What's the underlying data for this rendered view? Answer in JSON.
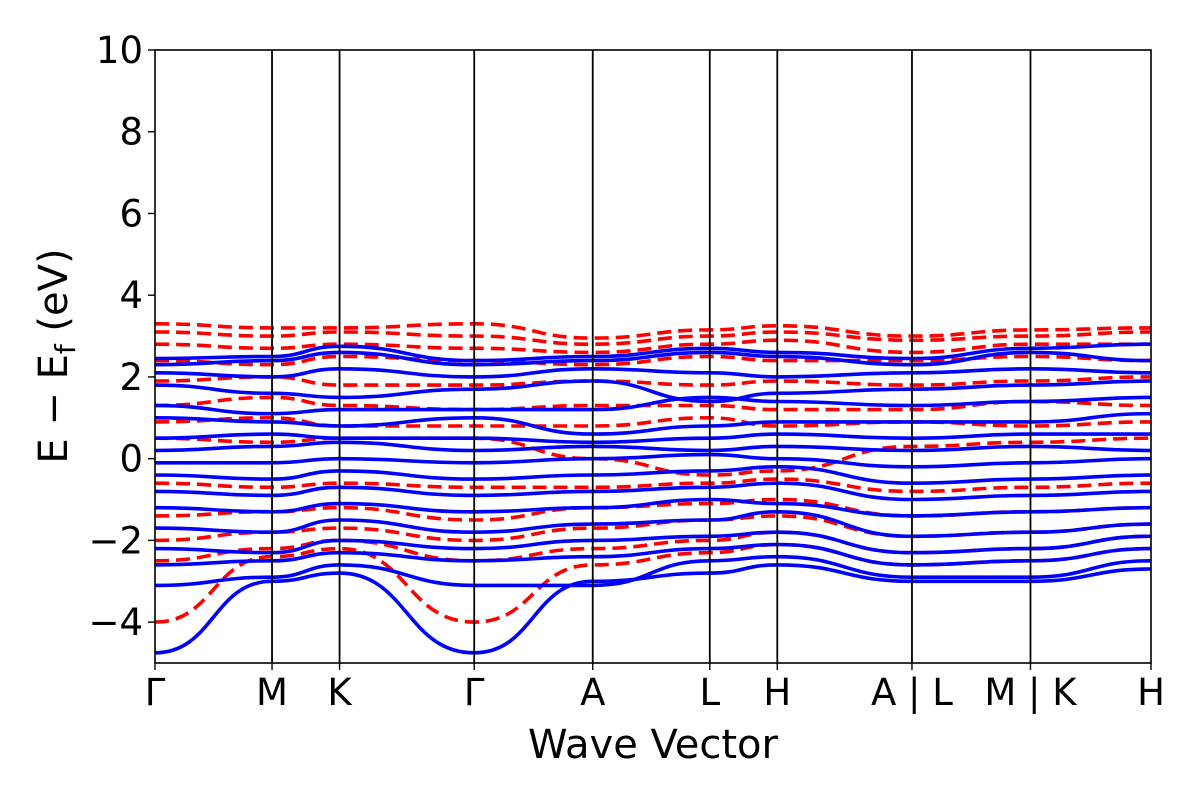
{
  "chart_data": {
    "type": "line",
    "title": "",
    "xlabel": "Wave Vector",
    "ylabel": "E − E_f (eV)",
    "ylabel_parts": {
      "main": "E − E",
      "sub": "f",
      "unit": " (eV)"
    },
    "xlim": [
      0,
      1
    ],
    "ylim": [
      -5,
      10
    ],
    "yticks": [
      -4,
      -2,
      0,
      2,
      4,
      6,
      8,
      10
    ],
    "ytick_labels": [
      "−4",
      "−2",
      "0",
      "2",
      "4",
      "6",
      "8",
      "10"
    ],
    "grid": false,
    "legend": "none",
    "kpoints": [
      {
        "label": "Γ",
        "x": 0.0
      },
      {
        "label": "M",
        "x": 0.1175
      },
      {
        "label": "K",
        "x": 0.1853
      },
      {
        "label": "Γ",
        "x": 0.3205
      },
      {
        "label": "A",
        "x": 0.4395
      },
      {
        "label": "L",
        "x": 0.557
      },
      {
        "label": "H",
        "x": 0.6248
      },
      {
        "label": "A | L",
        "x": 0.76
      },
      {
        "label": "M | K",
        "x": 0.879
      },
      {
        "label": "H",
        "x": 1.0
      }
    ],
    "colors": {
      "spin_up": "#0000ff",
      "spin_down": "#ff0000"
    },
    "series": [
      {
        "style": "solid",
        "color": "#0000ff",
        "bands": [
          {
            "x": [
              0,
              0.1175,
              0.1853,
              0.3205,
              0.4395,
              0.557,
              0.6248,
              0.76,
              0.879,
              1.0
            ],
            "y": [
              -4.75,
              -3.0,
              -2.8,
              -4.75,
              -3.0,
              -2.8,
              -2.6,
              -3.0,
              -3.0,
              -2.7
            ]
          },
          {
            "x": [
              0,
              0.1175,
              0.1853,
              0.3205,
              0.4395,
              0.557,
              0.6248,
              0.76,
              0.879,
              1.0
            ],
            "y": [
              -3.1,
              -2.9,
              -2.6,
              -3.1,
              -3.1,
              -2.5,
              -2.4,
              -2.9,
              -2.9,
              -2.5
            ]
          },
          {
            "x": [
              0,
              0.1175,
              0.1853,
              0.3205,
              0.4395,
              0.557,
              0.6248,
              0.76,
              0.879,
              1.0
            ],
            "y": [
              -2.6,
              -2.5,
              -2.3,
              -2.5,
              -2.4,
              -2.2,
              -2.1,
              -2.6,
              -2.5,
              -2.2
            ]
          },
          {
            "x": [
              0,
              0.1175,
              0.1853,
              0.3205,
              0.4395,
              0.557,
              0.6248,
              0.76,
              0.879,
              1.0
            ],
            "y": [
              -2.2,
              -2.3,
              -2.0,
              -2.2,
              -2.0,
              -1.9,
              -1.8,
              -2.3,
              -2.2,
              -1.9
            ]
          },
          {
            "x": [
              0,
              0.1175,
              0.1853,
              0.3205,
              0.4395,
              0.557,
              0.6248,
              0.76,
              0.879,
              1.0
            ],
            "y": [
              -1.7,
              -1.8,
              -1.5,
              -1.8,
              -1.6,
              -1.5,
              -1.3,
              -1.9,
              -1.8,
              -1.6
            ]
          },
          {
            "x": [
              0,
              0.1175,
              0.1853,
              0.3205,
              0.4395,
              0.557,
              0.6248,
              0.76,
              0.879,
              1.0
            ],
            "y": [
              -1.2,
              -1.3,
              -1.1,
              -1.3,
              -1.2,
              -1.0,
              -1.1,
              -1.4,
              -1.3,
              -1.2
            ]
          },
          {
            "x": [
              0,
              0.1175,
              0.1853,
              0.3205,
              0.4395,
              0.557,
              0.6248,
              0.76,
              0.879,
              1.0
            ],
            "y": [
              -0.8,
              -0.9,
              -0.7,
              -0.9,
              -0.8,
              -0.7,
              -0.6,
              -1.0,
              -0.9,
              -0.8
            ]
          },
          {
            "x": [
              0,
              0.1175,
              0.1853,
              0.3205,
              0.4395,
              0.557,
              0.6248,
              0.76,
              0.879,
              1.0
            ],
            "y": [
              -0.4,
              -0.5,
              -0.3,
              -0.5,
              -0.4,
              -0.3,
              -0.2,
              -0.6,
              -0.5,
              -0.4
            ]
          },
          {
            "x": [
              0,
              0.1175,
              0.1853,
              0.3205,
              0.4395,
              0.557,
              0.6248,
              0.76,
              0.879,
              1.0
            ],
            "y": [
              -0.1,
              -0.1,
              0.0,
              -0.1,
              0.0,
              0.1,
              0.0,
              -0.2,
              -0.1,
              0.0
            ]
          },
          {
            "x": [
              0,
              0.1175,
              0.1853,
              0.3205,
              0.4395,
              0.557,
              0.6248,
              0.76,
              0.879,
              1.0
            ],
            "y": [
              0.2,
              0.3,
              0.4,
              0.2,
              0.3,
              0.2,
              0.3,
              0.2,
              0.3,
              0.2
            ]
          },
          {
            "x": [
              0,
              0.1175,
              0.1853,
              0.3205,
              0.4395,
              0.557,
              0.6248,
              0.76,
              0.879,
              1.0
            ],
            "y": [
              0.5,
              0.6,
              0.5,
              0.5,
              0.4,
              0.5,
              0.6,
              0.5,
              0.6,
              0.6
            ]
          },
          {
            "x": [
              0,
              0.1175,
              0.1853,
              0.3205,
              0.4395,
              0.557,
              0.6248,
              0.76,
              0.879,
              1.0
            ],
            "y": [
              1.0,
              0.9,
              0.8,
              1.0,
              0.6,
              0.8,
              0.9,
              0.9,
              0.9,
              1.1
            ]
          },
          {
            "x": [
              0,
              0.1175,
              0.1853,
              0.3205,
              0.4395,
              0.557,
              0.6248,
              0.76,
              0.879,
              1.0
            ],
            "y": [
              1.3,
              1.1,
              1.2,
              1.2,
              1.2,
              1.5,
              1.4,
              1.3,
              1.4,
              1.5
            ]
          },
          {
            "x": [
              0,
              0.1175,
              0.1853,
              0.3205,
              0.4395,
              0.557,
              0.6248,
              0.76,
              0.879,
              1.0
            ],
            "y": [
              1.8,
              1.6,
              1.5,
              1.7,
              1.9,
              1.4,
              1.6,
              1.7,
              1.8,
              1.9
            ]
          },
          {
            "x": [
              0,
              0.1175,
              0.1853,
              0.3205,
              0.4395,
              0.557,
              0.6248,
              0.76,
              0.879,
              1.0
            ],
            "y": [
              2.1,
              2.0,
              2.2,
              2.0,
              2.2,
              2.1,
              2.0,
              2.1,
              2.2,
              2.1
            ]
          },
          {
            "x": [
              0,
              0.1175,
              0.1853,
              0.3205,
              0.4395,
              0.557,
              0.6248,
              0.76,
              0.879,
              1.0
            ],
            "y": [
              2.3,
              2.4,
              2.6,
              2.3,
              2.4,
              2.6,
              2.5,
              2.3,
              2.6,
              2.4
            ]
          },
          {
            "x": [
              0,
              0.1175,
              0.1853,
              0.3205,
              0.4395,
              0.557,
              0.6248,
              0.76,
              0.879,
              1.0
            ],
            "y": [
              2.45,
              2.5,
              2.75,
              2.4,
              2.5,
              2.7,
              2.6,
              2.45,
              2.7,
              2.8
            ]
          }
        ]
      },
      {
        "style": "dashed",
        "color": "#ff0000",
        "bands": [
          {
            "x": [
              0,
              0.1175,
              0.1853,
              0.3205,
              0.4395,
              0.557,
              0.6248,
              0.76,
              0.879,
              1.0
            ],
            "y": [
              -4.0,
              -2.4,
              -2.2,
              -4.0,
              -2.6,
              -2.3,
              -2.1,
              -2.6,
              -2.5,
              -2.2
            ]
          },
          {
            "x": [
              0,
              0.1175,
              0.1853,
              0.3205,
              0.4395,
              0.557,
              0.6248,
              0.76,
              0.879,
              1.0
            ],
            "y": [
              -2.5,
              -2.2,
              -2.0,
              -2.5,
              -2.2,
              -2.0,
              -1.8,
              -2.3,
              -2.2,
              -1.9
            ]
          },
          {
            "x": [
              0,
              0.1175,
              0.1853,
              0.3205,
              0.4395,
              0.557,
              0.6248,
              0.76,
              0.879,
              1.0
            ],
            "y": [
              -2.0,
              -1.8,
              -1.7,
              -2.0,
              -1.7,
              -1.5,
              -1.4,
              -1.9,
              -1.8,
              -1.6
            ]
          },
          {
            "x": [
              0,
              0.1175,
              0.1853,
              0.3205,
              0.4395,
              0.557,
              0.6248,
              0.76,
              0.879,
              1.0
            ],
            "y": [
              -1.4,
              -1.3,
              -1.2,
              -1.5,
              -1.2,
              -1.1,
              -1.0,
              -1.4,
              -1.3,
              -1.2
            ]
          },
          {
            "x": [
              0,
              0.1175,
              0.1853,
              0.3205,
              0.4395,
              0.557,
              0.6248,
              0.76,
              0.879,
              1.0
            ],
            "y": [
              -0.6,
              -0.7,
              -0.6,
              -0.7,
              -0.7,
              -0.6,
              -0.5,
              -0.8,
              -0.7,
              -0.6
            ]
          },
          {
            "x": [
              0,
              0.1175,
              0.1853,
              0.3205,
              0.4395,
              0.557,
              0.6248,
              0.76,
              0.879,
              1.0
            ],
            "y": [
              0.5,
              0.4,
              0.5,
              0.5,
              0.0,
              -0.4,
              -0.3,
              0.3,
              0.4,
              0.5
            ]
          },
          {
            "x": [
              0,
              0.1175,
              0.1853,
              0.3205,
              0.4395,
              0.557,
              0.6248,
              0.76,
              0.879,
              1.0
            ],
            "y": [
              0.9,
              1.0,
              0.8,
              0.8,
              0.8,
              1.0,
              0.8,
              0.9,
              0.8,
              0.9
            ]
          },
          {
            "x": [
              0,
              0.1175,
              0.1853,
              0.3205,
              0.4395,
              0.557,
              0.6248,
              0.76,
              0.879,
              1.0
            ],
            "y": [
              1.3,
              1.5,
              1.3,
              1.2,
              1.3,
              1.3,
              1.2,
              1.2,
              1.4,
              1.3
            ]
          },
          {
            "x": [
              0,
              0.1175,
              0.1853,
              0.3205,
              0.4395,
              0.557,
              0.6248,
              0.76,
              0.879,
              1.0
            ],
            "y": [
              1.9,
              2.0,
              1.8,
              1.8,
              1.9,
              1.8,
              1.9,
              1.8,
              1.9,
              2.0
            ]
          },
          {
            "x": [
              0,
              0.1175,
              0.1853,
              0.3205,
              0.4395,
              0.557,
              0.6248,
              0.76,
              0.879,
              1.0
            ],
            "y": [
              2.4,
              2.3,
              2.5,
              2.4,
              2.3,
              2.5,
              2.4,
              2.4,
              2.5,
              2.4
            ]
          },
          {
            "x": [
              0,
              0.1175,
              0.1853,
              0.3205,
              0.4395,
              0.557,
              0.6248,
              0.76,
              0.879,
              1.0
            ],
            "y": [
              2.8,
              2.7,
              2.8,
              2.7,
              2.6,
              2.8,
              2.9,
              2.6,
              2.8,
              2.8
            ]
          },
          {
            "x": [
              0,
              0.1175,
              0.1853,
              0.3205,
              0.4395,
              0.557,
              0.6248,
              0.76,
              0.879,
              1.0
            ],
            "y": [
              3.1,
              3.0,
              3.1,
              3.0,
              2.8,
              3.0,
              3.1,
              2.9,
              3.0,
              3.1
            ]
          },
          {
            "x": [
              0,
              0.1175,
              0.1853,
              0.3205,
              0.4395,
              0.557,
              0.6248,
              0.76,
              0.879,
              1.0
            ],
            "y": [
              3.3,
              3.2,
              3.2,
              3.3,
              2.95,
              3.15,
              3.25,
              3.0,
              3.15,
              3.2
            ]
          }
        ]
      }
    ]
  }
}
